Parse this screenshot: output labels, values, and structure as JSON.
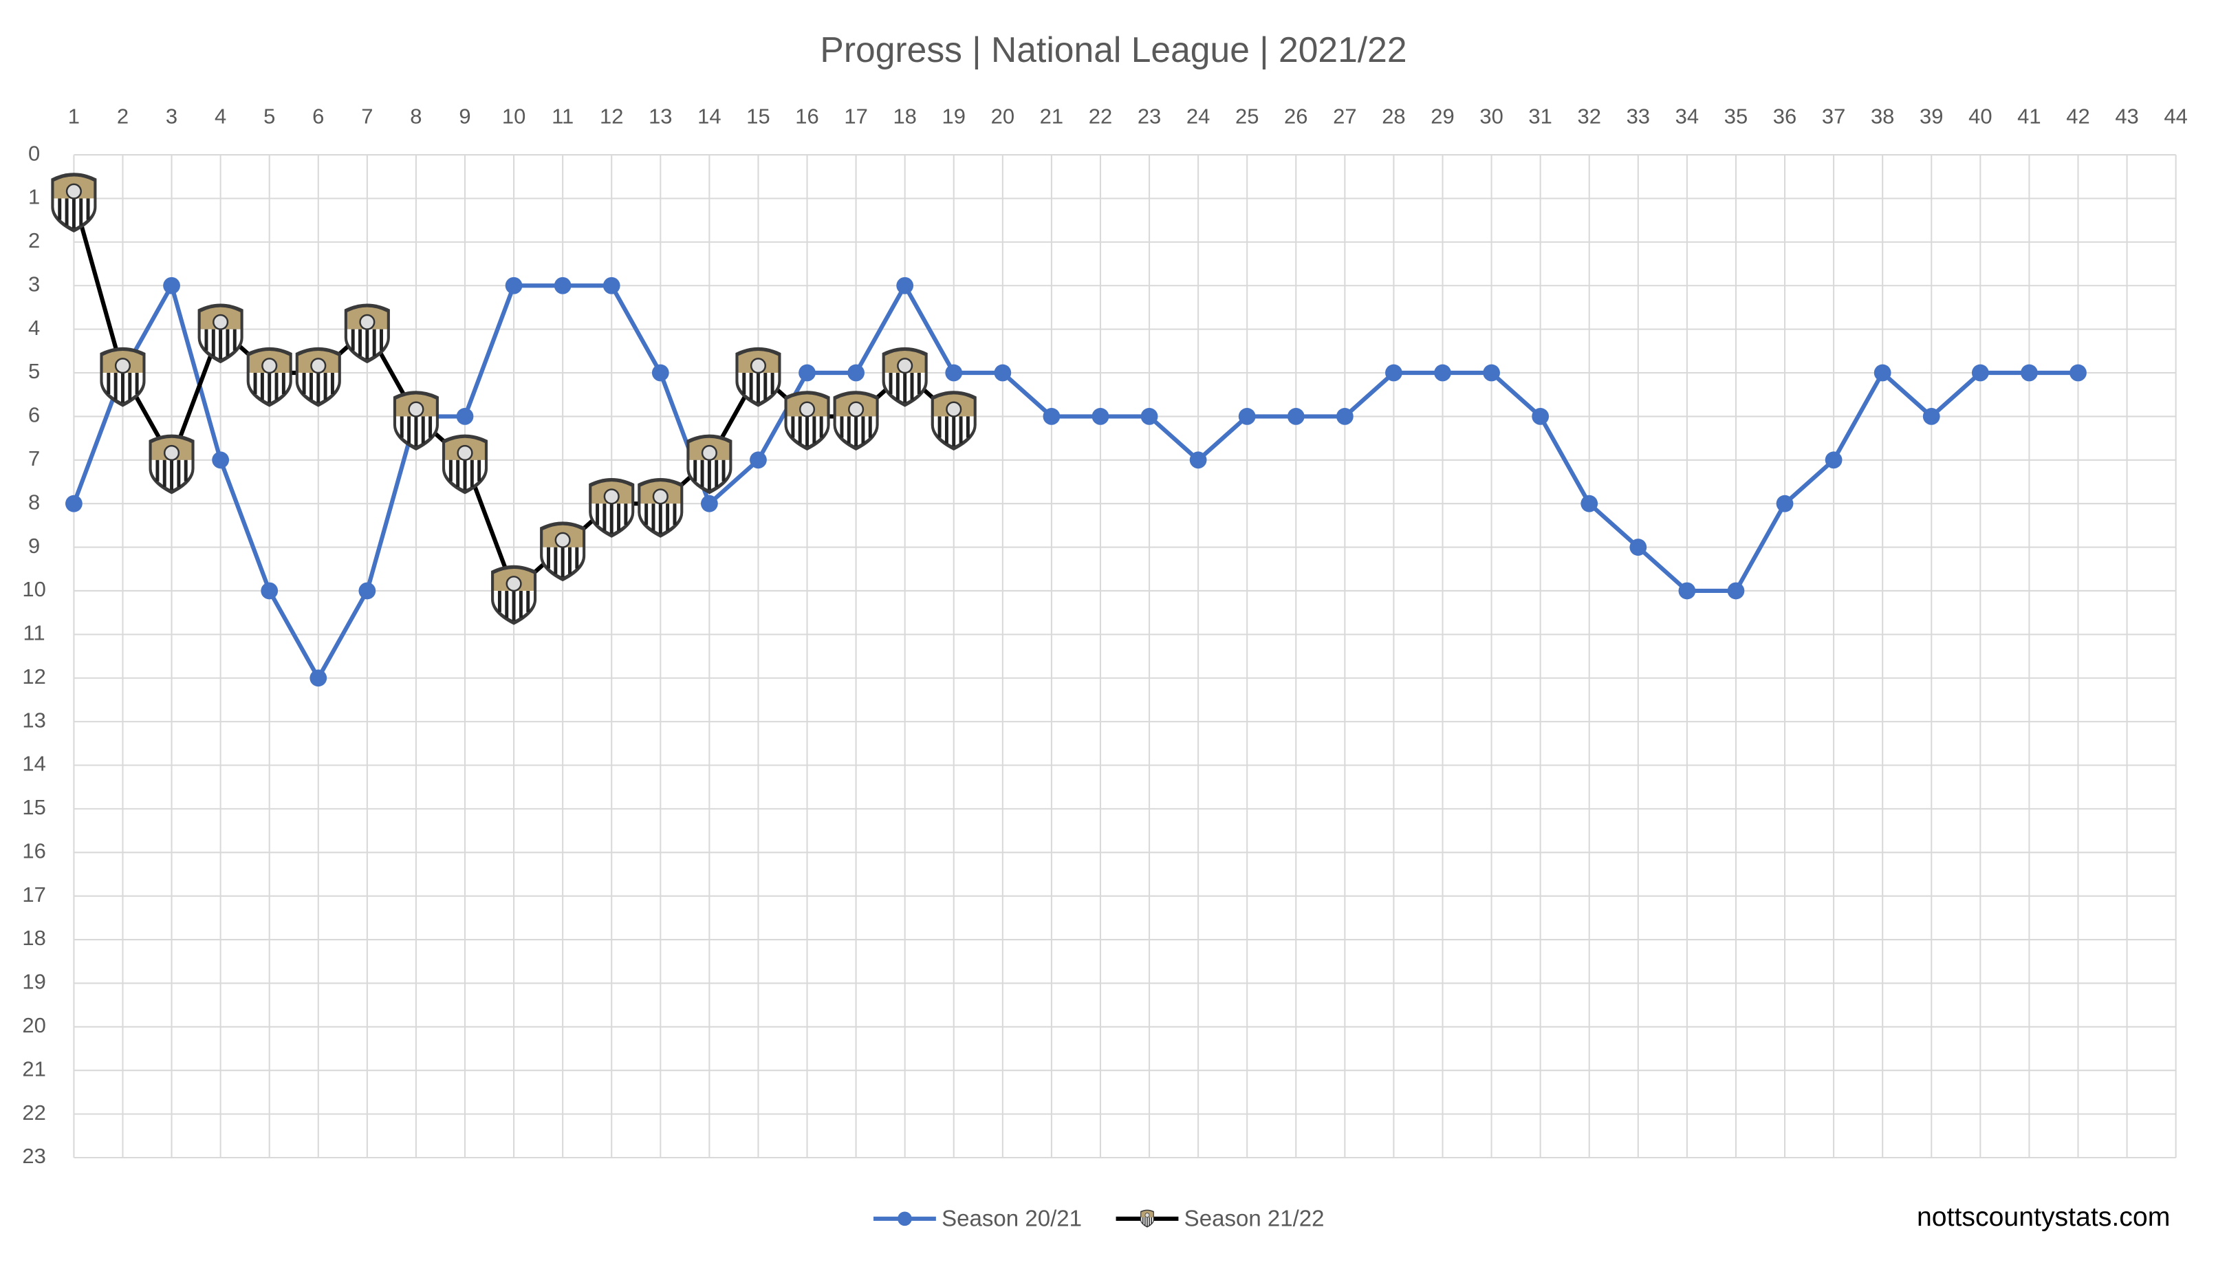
{
  "chart_data": {
    "type": "line",
    "title": "Progress | National League | 2021/22",
    "x": [
      1,
      2,
      3,
      4,
      5,
      6,
      7,
      8,
      9,
      10,
      11,
      12,
      13,
      14,
      15,
      16,
      17,
      18,
      19,
      20,
      21,
      22,
      23,
      24,
      25,
      26,
      27,
      28,
      29,
      30,
      31,
      32,
      33,
      34,
      35,
      36,
      37,
      38,
      39,
      40,
      41,
      42,
      43,
      44
    ],
    "xlim": [
      1,
      44
    ],
    "ylim": [
      0,
      23
    ],
    "yticks": [
      0,
      1,
      2,
      3,
      4,
      5,
      6,
      7,
      8,
      9,
      10,
      11,
      12,
      13,
      14,
      15,
      16,
      17,
      18,
      19,
      20,
      21,
      22,
      23
    ],
    "y_inverted": true,
    "grid": true,
    "legend": "bottom",
    "series": [
      {
        "name": "Season 20/21",
        "color": "#4472c4",
        "marker": "circle",
        "values": [
          8,
          5,
          3,
          7,
          10,
          12,
          10,
          6,
          6,
          3,
          3,
          3,
          5,
          8,
          7,
          5,
          5,
          3,
          5,
          5,
          6,
          6,
          6,
          7,
          6,
          6,
          6,
          5,
          5,
          5,
          6,
          8,
          9,
          10,
          10,
          8,
          7,
          5,
          6,
          5,
          5,
          5,
          null,
          null
        ]
      },
      {
        "name": "Season 21/22",
        "color": "#000000",
        "marker": "badge",
        "values": [
          1,
          5,
          7,
          4,
          5,
          5,
          4,
          6,
          7,
          10,
          9,
          8,
          8,
          7,
          5,
          6,
          6,
          5,
          6,
          null,
          null,
          null,
          null,
          null,
          null,
          null,
          null,
          null,
          null,
          null,
          null,
          null,
          null,
          null,
          null,
          null,
          null,
          null,
          null,
          null,
          null,
          null,
          null,
          null
        ]
      }
    ],
    "credit": "nottscountystats.com"
  }
}
